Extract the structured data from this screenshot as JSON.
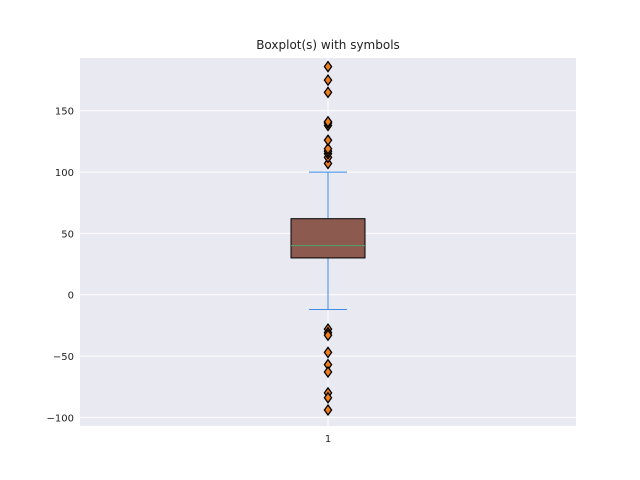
{
  "chart_data": {
    "type": "boxplot",
    "title": "Boxplot(s) with symbols",
    "xlabel": "",
    "ylabel": "",
    "categories": [
      "1"
    ],
    "ylim": [
      -107,
      193
    ],
    "yticks": [
      -100,
      -50,
      0,
      50,
      100,
      150
    ],
    "grid": true,
    "boxes": [
      {
        "category": "1",
        "whisker_low": -12,
        "q1": 30,
        "median": 40,
        "q3": 62,
        "whisker_high": 100,
        "outliers": [
          107,
          112,
          115,
          117,
          119,
          126,
          138,
          140,
          141,
          165,
          175,
          186,
          -28,
          -31,
          -33,
          -47,
          -57,
          -63,
          -80,
          -84,
          -94
        ]
      }
    ],
    "colors": {
      "background": "#e9e9f1",
      "grid": "#ffffff",
      "box_fill": "#8c5a4f",
      "median": "#4ea56a",
      "whisker": "#3c8ee8",
      "outlier_fill": "#f07e1c",
      "outlier_edge": "#000000"
    }
  }
}
